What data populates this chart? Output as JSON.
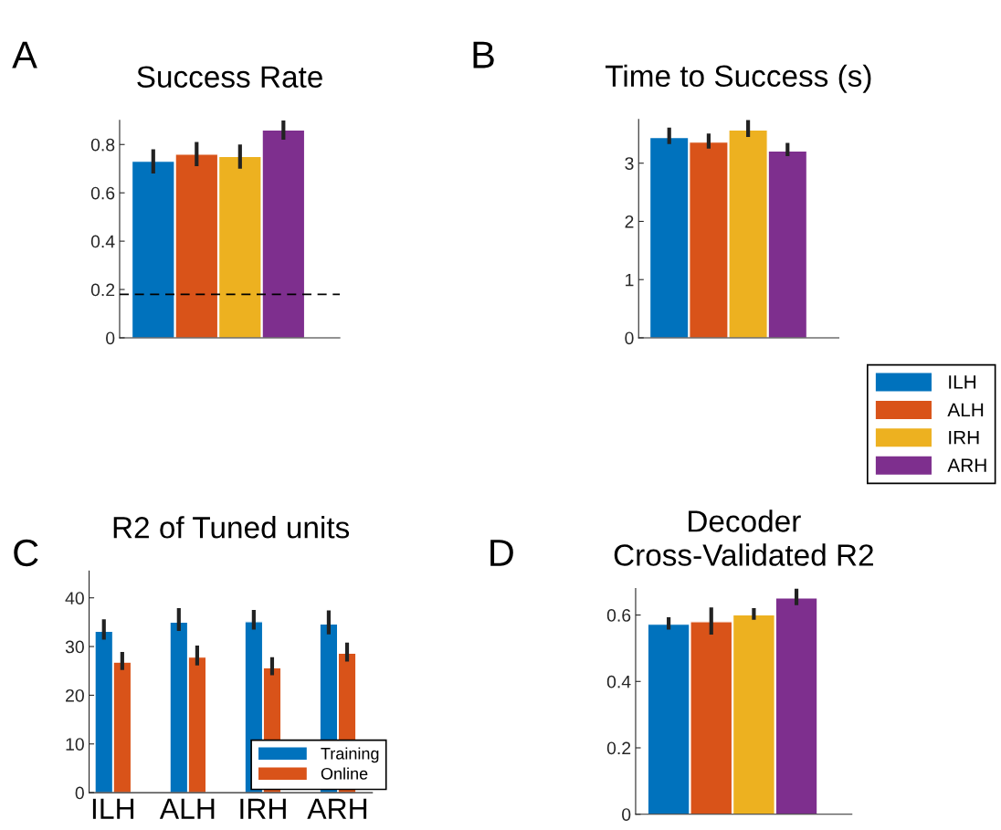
{
  "chart_data": [
    {
      "type": "bar",
      "title": "Success Rate",
      "annotations": [
        "A"
      ],
      "categories": [
        null
      ],
      "legend": false,
      "ylim": [
        0,
        0.9
      ],
      "yticks": [
        0,
        0.2,
        0.4,
        0.6,
        0.8
      ],
      "ref_lines": [
        {
          "axis": "y",
          "value": 0.18,
          "color": "#000000",
          "line_style": "dashed"
        }
      ],
      "series": [
        {
          "color": "#0072bd",
          "values": [
            0.73
          ],
          "errors": [
            [
              0.68,
              0.78
            ]
          ]
        },
        {
          "color": "#d95319",
          "values": [
            0.76
          ],
          "errors": [
            [
              0.71,
              0.81
            ]
          ]
        },
        {
          "color": "#edb120",
          "values": [
            0.75
          ],
          "errors": [
            [
              0.7,
              0.8
            ]
          ]
        },
        {
          "color": "#7e2f8e",
          "values": [
            0.86
          ],
          "errors": [
            [
              0.82,
              0.9
            ]
          ]
        }
      ]
    },
    {
      "type": "bar",
      "title": "Time to Success (s)",
      "annotations": [
        "B"
      ],
      "categories": [
        null
      ],
      "legend": "bottom right",
      "ylim": [
        0,
        3.75
      ],
      "yticks": [
        0,
        1,
        2,
        3
      ],
      "series": [
        {
          "name": "ILH",
          "color": "#0072bd",
          "values": [
            3.44
          ],
          "errors": [
            [
              3.33,
              3.61
            ]
          ]
        },
        {
          "name": "ALH",
          "color": "#d95319",
          "values": [
            3.36
          ],
          "errors": [
            [
              3.25,
              3.51
            ]
          ]
        },
        {
          "name": "IRH",
          "color": "#edb120",
          "values": [
            3.57
          ],
          "errors": [
            [
              3.45,
              3.74
            ]
          ]
        },
        {
          "name": "ARH",
          "color": "#7e2f8e",
          "values": [
            3.21
          ],
          "errors": [
            [
              3.12,
              3.35
            ]
          ]
        }
      ]
    },
    {
      "type": "bar",
      "title": "R2 of Tuned units",
      "annotations": [
        "C"
      ],
      "categories": [
        "ILH",
        "ALH",
        "IRH",
        "ARH"
      ],
      "legend": "bottom right",
      "ylim": [
        0,
        45.5
      ],
      "yticks": [
        0,
        10,
        20,
        30,
        40
      ],
      "series": [
        {
          "name": "Training",
          "color": "#0072bd",
          "values": [
            33.1,
            35.0,
            35.1,
            34.6
          ],
          "errors": [
            [
              31.4,
              35.6
            ],
            [
              33.2,
              37.9
            ],
            [
              33.5,
              37.5
            ],
            [
              32.5,
              37.4
            ]
          ]
        },
        {
          "name": "Online",
          "color": "#d95319",
          "values": [
            26.8,
            27.8,
            25.6,
            28.6
          ],
          "errors": [
            [
              25.2,
              28.9
            ],
            [
              26.1,
              30.2
            ],
            [
              24.1,
              27.8
            ],
            [
              26.9,
              30.8
            ]
          ]
        }
      ]
    },
    {
      "type": "bar",
      "title": "Decoder\nCross-Validated R2",
      "annotations": [
        "D"
      ],
      "categories": [
        null
      ],
      "legend": false,
      "ylim": [
        0,
        0.68
      ],
      "yticks": [
        0,
        0.2,
        0.4,
        0.6
      ],
      "series": [
        {
          "color": "#0072bd",
          "values": [
            0.572
          ],
          "errors": [
            [
              0.556,
              0.593
            ]
          ]
        },
        {
          "color": "#d95319",
          "values": [
            0.58
          ],
          "errors": [
            [
              0.541,
              0.623
            ]
          ]
        },
        {
          "color": "#edb120",
          "values": [
            0.6
          ],
          "errors": [
            [
              0.586,
              0.621
            ]
          ]
        },
        {
          "color": "#7e2f8e",
          "values": [
            0.651
          ],
          "errors": [
            [
              0.63,
              0.68
            ]
          ]
        }
      ]
    }
  ]
}
